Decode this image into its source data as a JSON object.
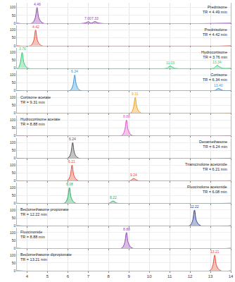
{
  "chart_data": [
    {
      "type": "line",
      "title": "Prednisone",
      "subtitle": "TR = 4.49 min",
      "color": "#8e44ad",
      "grid": true,
      "tick_labels": "y",
      "x": [
        3.5,
        4.24,
        4.39,
        4.49,
        4.59,
        4.79,
        6.8,
        6.95,
        7.0,
        7.05,
        7.15,
        7.25,
        7.33,
        7.41,
        7.55,
        14
      ],
      "values": [
        0,
        0,
        30,
        100,
        30,
        0,
        0,
        6,
        10,
        6,
        0,
        6,
        10,
        6,
        0,
        0
      ],
      "xlim": [
        3.5,
        14
      ],
      "xticks": [
        4,
        5,
        6,
        7,
        8,
        9,
        10,
        11,
        12,
        13,
        14
      ],
      "ylim": [
        0,
        130
      ],
      "yticks": [
        0,
        50,
        100
      ],
      "annotations": [
        {
          "x": 4.49,
          "y": 100,
          "text": "4.49"
        },
        {
          "x": 7.0,
          "y": 10,
          "text": "7.00"
        },
        {
          "x": 7.33,
          "y": 10,
          "text": "7.33"
        }
      ]
    },
    {
      "type": "line",
      "title": "Prednisolone",
      "subtitle": "TR = 4.42 min",
      "color": "#e74c3c",
      "grid": true,
      "tick_labels": "y",
      "x": [
        3.5,
        4.17,
        4.32,
        4.42,
        4.52,
        4.72,
        14
      ],
      "values": [
        0,
        0,
        30,
        100,
        30,
        0,
        0
      ],
      "xlim": [
        3.5,
        14
      ],
      "xticks": [
        4,
        5,
        6,
        7,
        8,
        9,
        10,
        11,
        12,
        13,
        14
      ],
      "ylim": [
        0,
        130
      ],
      "yticks": [
        0,
        50,
        100
      ],
      "annotations": [
        {
          "x": 4.42,
          "y": 100,
          "text": "4.42"
        }
      ]
    },
    {
      "type": "line",
      "title": "Hydrocortisone",
      "subtitle": "TR = 3.76 min",
      "color": "#2ecc71",
      "grid": true,
      "tick_labels": "y",
      "x": [
        3.5,
        3.56,
        3.66,
        3.76,
        3.86,
        4.06,
        10.85,
        10.95,
        11.03,
        11.11,
        11.25,
        13.15,
        13.25,
        13.34,
        13.43,
        13.6,
        14
      ],
      "values": [
        0,
        0,
        30,
        100,
        30,
        0,
        0,
        8,
        14,
        8,
        0,
        0,
        10,
        18,
        10,
        0,
        0
      ],
      "xlim": [
        3.5,
        14
      ],
      "xticks": [
        4,
        5,
        6,
        7,
        8,
        9,
        10,
        11,
        12,
        13,
        14
      ],
      "ylim": [
        0,
        130
      ],
      "yticks": [
        0,
        50,
        100
      ],
      "annotations": [
        {
          "x": 3.76,
          "y": 100,
          "text": "3.76"
        },
        {
          "x": 11.03,
          "y": 14,
          "text": "11.03"
        },
        {
          "x": 13.34,
          "y": 18,
          "text": "13.34"
        }
      ]
    },
    {
      "type": "line",
      "title": "Cortisone",
      "subtitle": "TR = 6.34 min",
      "color": "#3498db",
      "grid": true,
      "tick_labels": "y",
      "x": [
        3.5,
        6.09,
        6.24,
        6.34,
        6.44,
        6.64,
        13.2,
        13.3,
        13.4,
        13.5,
        13.65,
        14
      ],
      "values": [
        0,
        0,
        30,
        100,
        30,
        0,
        0,
        8,
        14,
        8,
        0,
        0
      ],
      "xlim": [
        3.5,
        14
      ],
      "xticks": [
        4,
        5,
        6,
        7,
        8,
        9,
        10,
        11,
        12,
        13,
        14
      ],
      "ylim": [
        0,
        130
      ],
      "yticks": [
        0,
        50,
        100
      ],
      "annotations": [
        {
          "x": 6.34,
          "y": 100,
          "text": "6.34"
        },
        {
          "x": 13.4,
          "y": 14,
          "text": "13.40"
        }
      ]
    },
    {
      "type": "line",
      "title": "Cortisone acetate",
      "subtitle": "TR = 9.31 min",
      "color": "#f39c12",
      "grid": true,
      "tick_labels": "y",
      "x": [
        3.5,
        9.06,
        9.21,
        9.31,
        9.41,
        9.61,
        14
      ],
      "values": [
        0,
        0,
        30,
        100,
        30,
        0,
        0
      ],
      "xlim": [
        3.5,
        14
      ],
      "xticks": [
        4,
        5,
        6,
        7,
        8,
        9,
        10,
        11,
        12,
        13,
        14
      ],
      "ylim": [
        0,
        130
      ],
      "yticks": [
        0,
        50,
        100
      ],
      "annotations": [
        {
          "x": 9.31,
          "y": 100,
          "text": "9.31"
        }
      ]
    },
    {
      "type": "line",
      "title": "Hydrocortisone acetate",
      "subtitle": "TR = 8.88 min",
      "color": "#e056c8",
      "grid": true,
      "tick_labels": "y",
      "x": [
        3.5,
        8.63,
        8.78,
        8.88,
        8.98,
        9.18,
        14
      ],
      "values": [
        0,
        0,
        30,
        100,
        30,
        0,
        0
      ],
      "xlim": [
        3.5,
        14
      ],
      "xticks": [
        4,
        5,
        6,
        7,
        8,
        9,
        10,
        11,
        12,
        13,
        14
      ],
      "ylim": [
        0,
        130
      ],
      "yticks": [
        0,
        50,
        100
      ],
      "annotations": [
        {
          "x": 8.88,
          "y": 100,
          "text": "8.88"
        }
      ]
    },
    {
      "type": "line",
      "title": "Dexamethasone",
      "subtitle": "TR = 6.24 min",
      "color": "#555555",
      "grid": true,
      "tick_labels": "y",
      "x": [
        3.5,
        5.99,
        6.14,
        6.24,
        6.34,
        6.54,
        14
      ],
      "values": [
        0,
        0,
        30,
        100,
        30,
        0,
        0
      ],
      "xlim": [
        3.5,
        14
      ],
      "xticks": [
        4,
        5,
        6,
        7,
        8,
        9,
        10,
        11,
        12,
        13,
        14
      ],
      "ylim": [
        0,
        130
      ],
      "yticks": [
        0,
        50,
        100
      ],
      "annotations": [
        {
          "x": 6.24,
          "y": 100,
          "text": "6.24"
        }
      ]
    },
    {
      "type": "line",
      "title": "Triamcinolone acetonide",
      "subtitle": "TR = 6.21 min",
      "color": "#e74c3c",
      "grid": true,
      "tick_labels": "y",
      "x": [
        3.5,
        5.96,
        6.11,
        6.21,
        6.31,
        6.51,
        9.05,
        9.15,
        9.24,
        9.33,
        9.45,
        14
      ],
      "values": [
        0,
        0,
        30,
        100,
        30,
        0,
        0,
        8,
        14,
        8,
        0,
        0
      ],
      "xlim": [
        3.5,
        14
      ],
      "xticks": [
        4,
        5,
        6,
        7,
        8,
        9,
        10,
        11,
        12,
        13,
        14
      ],
      "ylim": [
        0,
        130
      ],
      "yticks": [
        0,
        50,
        100
      ],
      "annotations": [
        {
          "x": 6.21,
          "y": 100,
          "text": "6.21"
        },
        {
          "x": 9.24,
          "y": 14,
          "text": "9.24"
        }
      ]
    },
    {
      "type": "line",
      "title": "Fluocinolone acetonide",
      "subtitle": "TR = 6.08 min",
      "color": "#27ae60",
      "grid": true,
      "tick_labels": "y",
      "x": [
        3.5,
        5.83,
        5.98,
        6.08,
        6.18,
        6.38,
        8.03,
        8.13,
        8.22,
        8.31,
        8.43,
        14
      ],
      "values": [
        0,
        0,
        30,
        100,
        30,
        0,
        0,
        8,
        14,
        8,
        0,
        0
      ],
      "xlim": [
        3.5,
        14
      ],
      "xticks": [
        4,
        5,
        6,
        7,
        8,
        9,
        10,
        11,
        12,
        13,
        14
      ],
      "ylim": [
        0,
        130
      ],
      "yticks": [
        0,
        50,
        100
      ],
      "annotations": [
        {
          "x": 6.08,
          "y": 100,
          "text": "6.08"
        },
        {
          "x": 8.22,
          "y": 14,
          "text": "8.22"
        }
      ]
    },
    {
      "type": "line",
      "title": "Beclomethasone propionate",
      "subtitle": "TR = 12.22 min",
      "color": "#2c3e8f",
      "grid": true,
      "tick_labels": "y",
      "x": [
        3.5,
        11.97,
        12.12,
        12.22,
        12.32,
        12.52,
        14
      ],
      "values": [
        0,
        0,
        30,
        100,
        30,
        0,
        0
      ],
      "xlim": [
        3.5,
        14
      ],
      "xticks": [
        4,
        5,
        6,
        7,
        8,
        9,
        10,
        11,
        12,
        13,
        14
      ],
      "ylim": [
        0,
        130
      ],
      "yticks": [
        0,
        50,
        100
      ],
      "annotations": [
        {
          "x": 12.22,
          "y": 100,
          "text": "12.22"
        }
      ]
    },
    {
      "type": "line",
      "title": "Fluocinonide",
      "subtitle": "TR = 8.88 min",
      "color": "#8e44ad",
      "grid": true,
      "tick_labels": "y",
      "x": [
        3.5,
        8.63,
        8.78,
        8.88,
        8.98,
        9.18,
        14
      ],
      "values": [
        0,
        0,
        30,
        100,
        30,
        0,
        0
      ],
      "xlim": [
        3.5,
        14
      ],
      "xticks": [
        4,
        5,
        6,
        7,
        8,
        9,
        10,
        11,
        12,
        13,
        14
      ],
      "ylim": [
        0,
        130
      ],
      "yticks": [
        0,
        50,
        100
      ],
      "annotations": [
        {
          "x": 8.88,
          "y": 100,
          "text": "8.88"
        }
      ]
    },
    {
      "type": "line",
      "title": "Beclomethasone dipropionate",
      "subtitle": "TR = 13.21 min",
      "color": "#e74c3c",
      "grid": true,
      "x": [
        3.5,
        12.96,
        13.11,
        13.21,
        13.31,
        13.51,
        14
      ],
      "values": [
        0,
        0,
        30,
        100,
        30,
        0,
        0
      ],
      "xlim": [
        3.5,
        14
      ],
      "xticks": [
        4,
        5,
        6,
        7,
        8,
        9,
        10,
        11,
        12,
        13,
        14
      ],
      "ylim": [
        0,
        130
      ],
      "yticks": [
        0,
        50,
        100
      ],
      "annotations": [
        {
          "x": 13.21,
          "y": 100,
          "text": "13.21"
        }
      ]
    }
  ]
}
